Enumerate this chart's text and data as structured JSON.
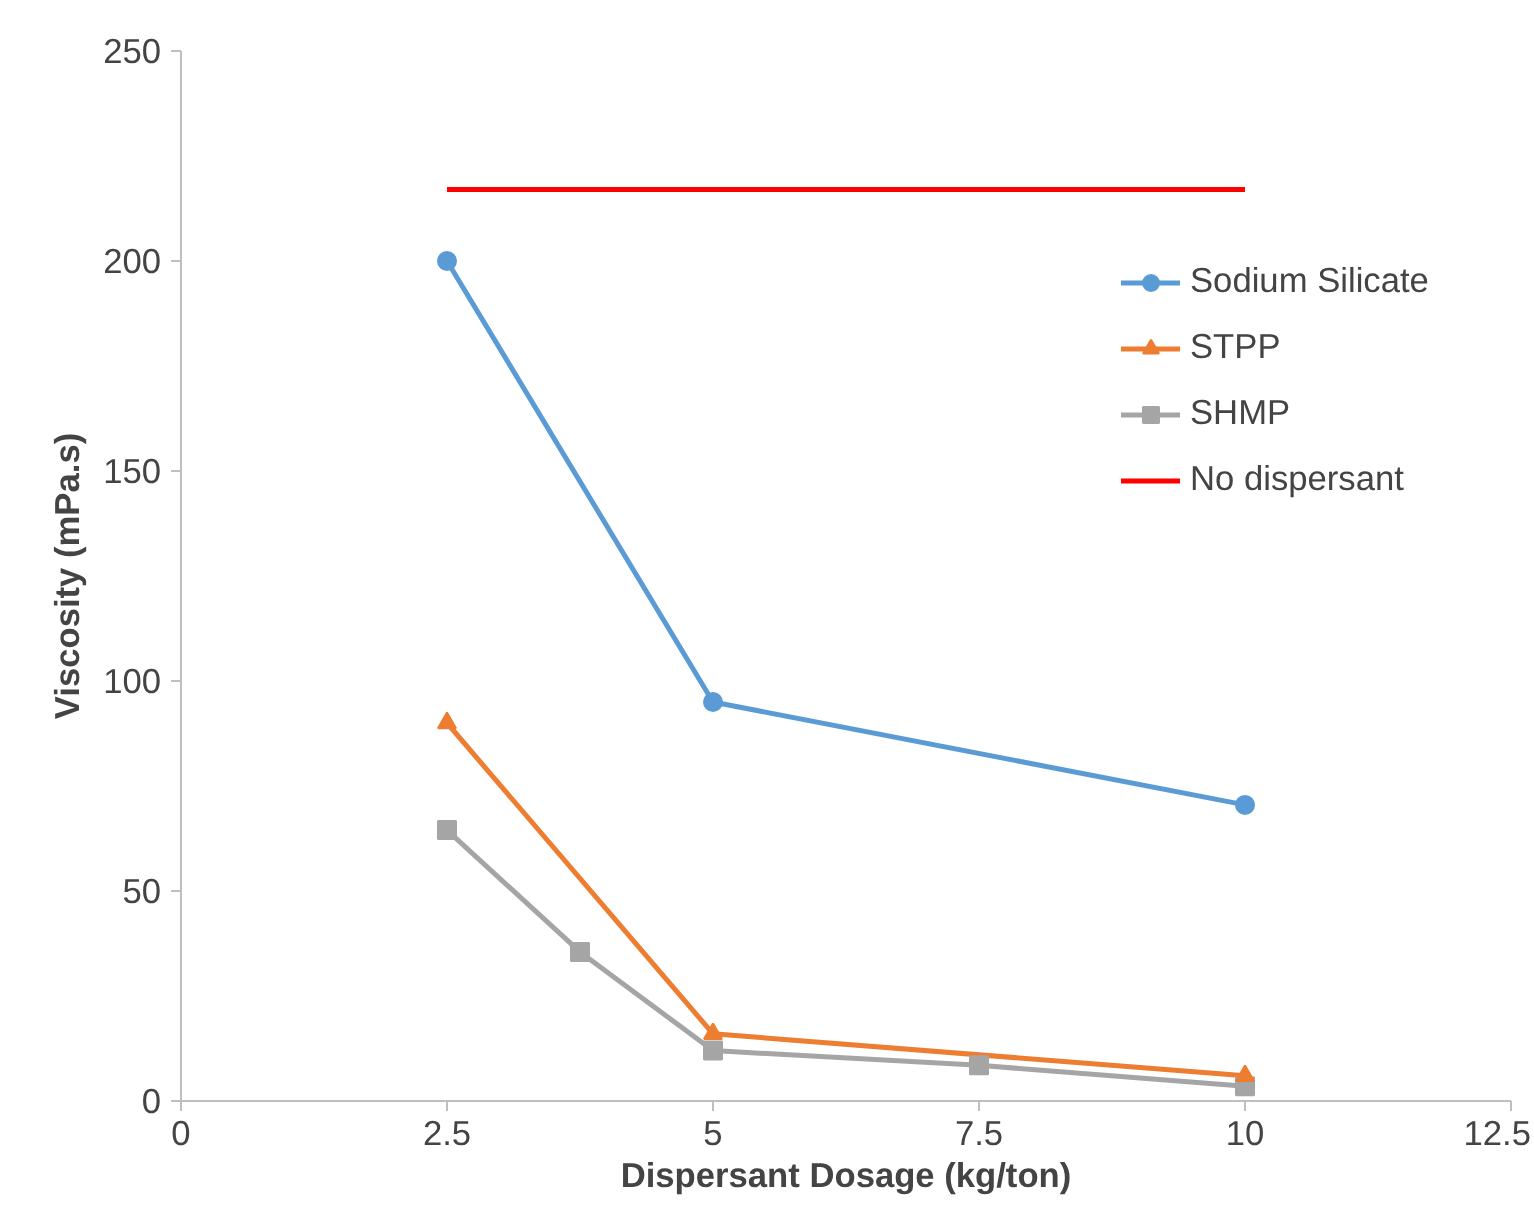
{
  "chart_data": {
    "type": "line",
    "xlabel": "Dispersant Dosage (kg/ton)",
    "ylabel": "Viscosity (mPa.s)",
    "xlim": [
      0,
      12.5
    ],
    "xticks": [
      0,
      2.5,
      5,
      7.5,
      10,
      12.5
    ],
    "ylim": [
      0,
      250
    ],
    "yticks": [
      0,
      50,
      100,
      150,
      200,
      250
    ],
    "grid": false,
    "legend": "right",
    "series": [
      {
        "name": "Sodium Silicate",
        "color": "#5b9bd5",
        "marker": "circle",
        "x": [
          2.5,
          5,
          10
        ],
        "values": [
          200,
          95,
          70.5
        ]
      },
      {
        "name": "STPP",
        "color": "#ed7d31",
        "marker": "triangle",
        "x": [
          2.5,
          5,
          10
        ],
        "values": [
          90,
          16,
          6
        ]
      },
      {
        "name": "SHMP",
        "color": "#a5a5a5",
        "marker": "square",
        "x": [
          2.5,
          3.75,
          5,
          7.5,
          10
        ],
        "values": [
          64.5,
          35.5,
          12,
          8.5,
          3.5
        ]
      },
      {
        "name": "No dispersant",
        "color": "#ff0000",
        "marker": "none",
        "x": [
          2.5,
          10
        ],
        "values": [
          217,
          217
        ]
      }
    ]
  }
}
